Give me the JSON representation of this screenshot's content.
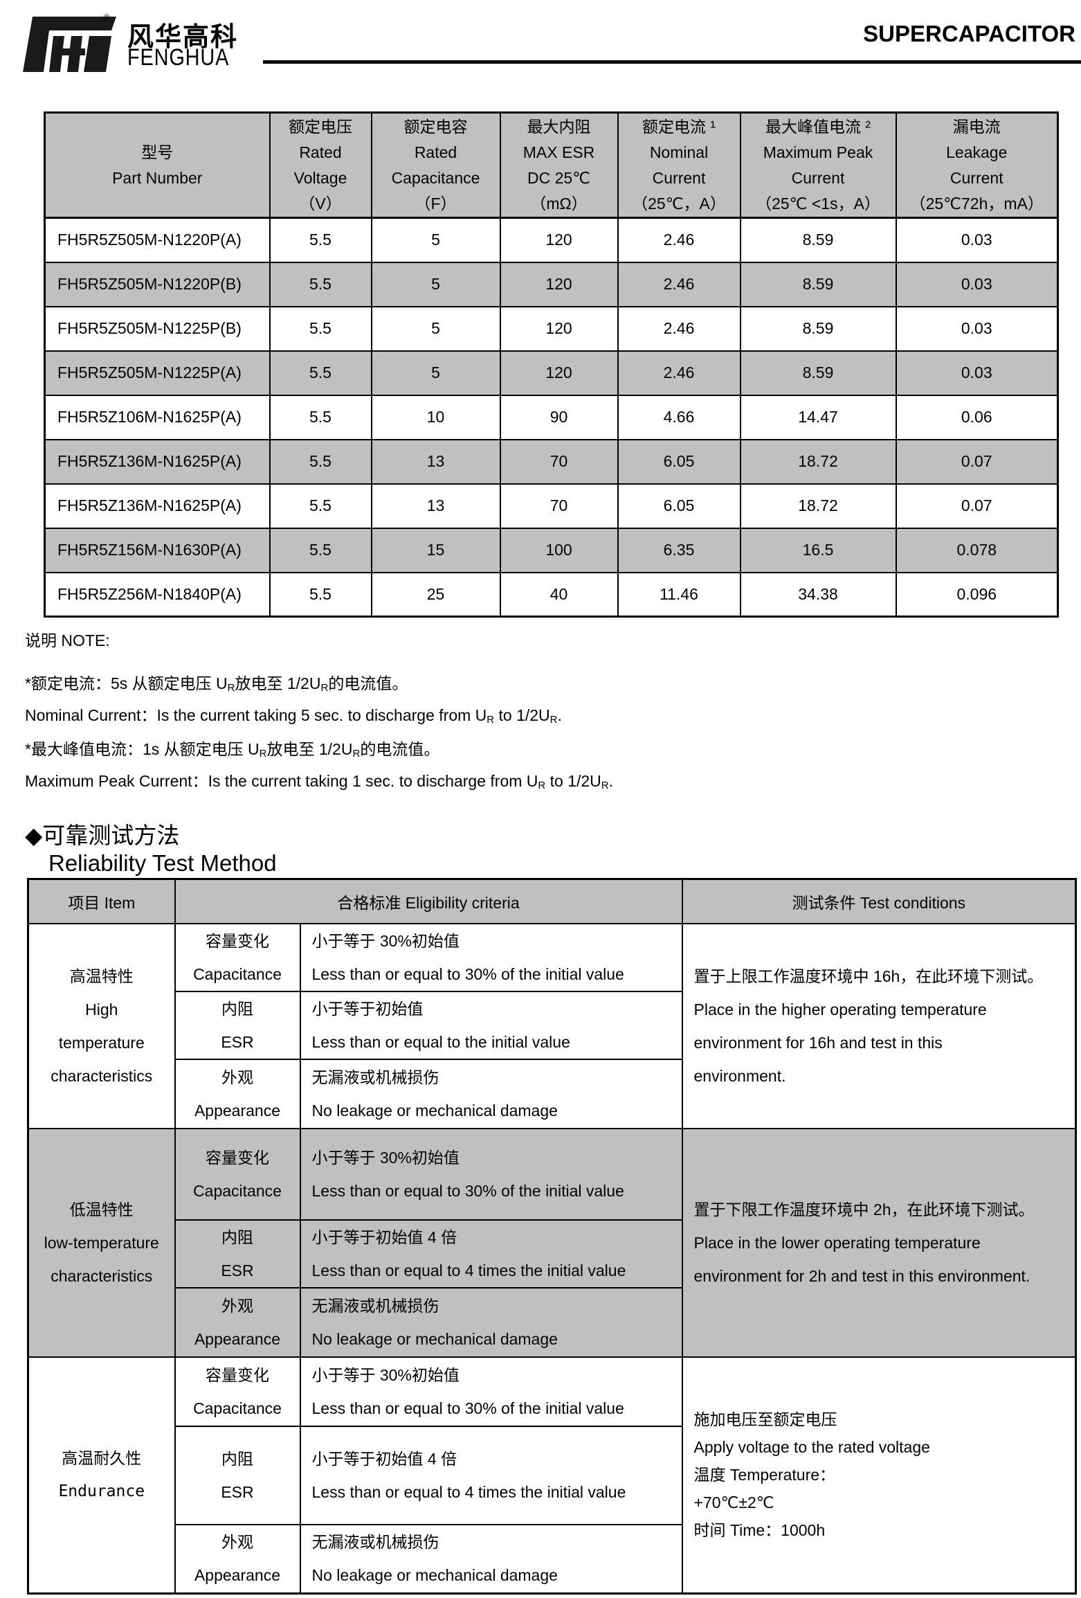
{
  "header": {
    "brand_cn": "风华高科",
    "brand_en": "FENGHUA",
    "registered": "®",
    "product": "SUPERCAPACITOR"
  },
  "spec_table": {
    "headers": [
      {
        "cn": "型号",
        "en1": "Part Number",
        "en2": "",
        "unit": ""
      },
      {
        "cn": "额定电压",
        "en1": "Rated",
        "en2": "Voltage",
        "unit": "（V）"
      },
      {
        "cn": "额定电容",
        "en1": "Rated",
        "en2": "Capacitance",
        "unit": "（F）"
      },
      {
        "cn": "最大内阻",
        "en1": "MAX ESR",
        "en2": "DC 25℃",
        "unit": "（mΩ）"
      },
      {
        "cn": "额定电流 ¹",
        "en1": "Nominal",
        "en2": "Current",
        "unit": "（25℃，A）"
      },
      {
        "cn": "最大峰值电流 ²",
        "en1": "Maximum Peak",
        "en2": "Current",
        "unit": "（25℃ <1s，A）"
      },
      {
        "cn": "漏电流",
        "en1": "Leakage",
        "en2": "Current",
        "unit": "（25℃72h，mA）"
      }
    ],
    "rows": [
      [
        "FH5R5Z505M-N1220P(A)",
        "5.5",
        "5",
        "120",
        "2.46",
        "8.59",
        "0.03"
      ],
      [
        "FH5R5Z505M-N1220P(B)",
        "5.5",
        "5",
        "120",
        "2.46",
        "8.59",
        "0.03"
      ],
      [
        "FH5R5Z505M-N1225P(B)",
        "5.5",
        "5",
        "120",
        "2.46",
        "8.59",
        "0.03"
      ],
      [
        "FH5R5Z505M-N1225P(A)",
        "5.5",
        "5",
        "120",
        "2.46",
        "8.59",
        "0.03"
      ],
      [
        "FH5R5Z106M-N1625P(A)",
        "5.5",
        "10",
        "90",
        "4.66",
        "14.47",
        "0.06"
      ],
      [
        "FH5R5Z136M-N1625P(A)",
        "5.5",
        "13",
        "70",
        "6.05",
        "18.72",
        "0.07"
      ],
      [
        "FH5R5Z136M-N1625P(A)",
        "5.5",
        "13",
        "70",
        "6.05",
        "18.72",
        "0.07"
      ],
      [
        "FH5R5Z156M-N1630P(A)",
        "5.5",
        "15",
        "100",
        "6.35",
        "16.5",
        "0.078"
      ],
      [
        "FH5R5Z256M-N1840P(A)",
        "5.5",
        "25",
        "40",
        "11.46",
        "34.38",
        "0.096"
      ]
    ]
  },
  "notes": {
    "title": "说明 NOTE:",
    "n1_cn_a": "*额定电流：5s 从额定电压 U",
    "n1_cn_b": "放电至 1/2U",
    "n1_cn_c": "的电流值。",
    "n1_en_a": "Nominal Current：Is the current taking 5 sec. to discharge from U",
    "n1_en_b": " to 1/2U",
    "n1_en_c": ".",
    "n2_cn_a": "*最大峰值电流：1s 从额定电压 U",
    "n2_cn_b": "放电至 1/2U",
    "n2_cn_c": "的电流值。",
    "n2_en_a": "Maximum Peak Current：Is the current taking 1 sec. to discharge from U",
    "n2_en_b": " to 1/2U",
    "n2_en_c": ".",
    "sub": "R"
  },
  "reliability": {
    "title_cn": "◆可靠测试方法",
    "title_en": "Reliability Test Method",
    "headers": [
      "项目 Item",
      "合格标准 Eligibility criteria",
      "测试条件 Test conditions"
    ],
    "groups": [
      {
        "item": [
          "高温特性",
          "High",
          "temperature",
          "characteristics"
        ],
        "rows": [
          {
            "param": [
              "容量变化",
              "Capacitance"
            ],
            "criteria": [
              "小于等于 30%初始值",
              "Less than or equal to 30% of the initial value"
            ]
          },
          {
            "param": [
              "内阻",
              "ESR"
            ],
            "criteria": [
              "小于等于初始值",
              "Less than or equal to the initial value"
            ]
          },
          {
            "param": [
              "外观",
              "Appearance"
            ],
            "criteria": [
              "无漏液或机械损伤",
              "No leakage or mechanical damage"
            ]
          }
        ],
        "conditions": [
          "置于上限工作温度环境中 16h，在此环境下测试。",
          "Place in the higher operating temperature",
          "environment for 16h and test in this",
          "environment."
        ]
      },
      {
        "item": [
          "低温特性",
          "low-temperature",
          "characteristics"
        ],
        "rows": [
          {
            "param": [
              "容量变化",
              "Capacitance"
            ],
            "criteria": [
              "小于等于 30%初始值",
              "Less than or equal to 30% of the initial value"
            ]
          },
          {
            "param": [
              "内阻",
              "ESR"
            ],
            "criteria": [
              "小于等于初始值 4 倍",
              "Less than or equal to 4 times the initial value"
            ]
          },
          {
            "param": [
              "外观",
              "Appearance"
            ],
            "criteria": [
              "无漏液或机械损伤",
              "No leakage or mechanical damage"
            ]
          }
        ],
        "conditions": [
          "置于下限工作温度环境中 2h，在此环境下测试。",
          "Place in the lower operating temperature",
          "environment for 2h and test in this environment."
        ]
      },
      {
        "item": [
          "高温耐久性",
          "Endurance"
        ],
        "rows": [
          {
            "param": [
              "容量变化",
              "Capacitance"
            ],
            "criteria": [
              "小于等于 30%初始值",
              "Less than or equal to 30% of the initial value"
            ]
          },
          {
            "param": [
              "内阻",
              "ESR"
            ],
            "criteria": [
              "小于等于初始值 4 倍",
              "Less than or equal to 4 times the initial value"
            ]
          },
          {
            "param": [
              "外观",
              "Appearance"
            ],
            "criteria": [
              "无漏液或机械损伤",
              "No leakage or mechanical damage"
            ]
          }
        ],
        "conditions": [
          "施加电压至额定电压",
          "Apply voltage to the rated voltage",
          "温度 Temperature：",
          "+70℃±2℃",
          "时间 Time：1000h"
        ]
      }
    ]
  }
}
